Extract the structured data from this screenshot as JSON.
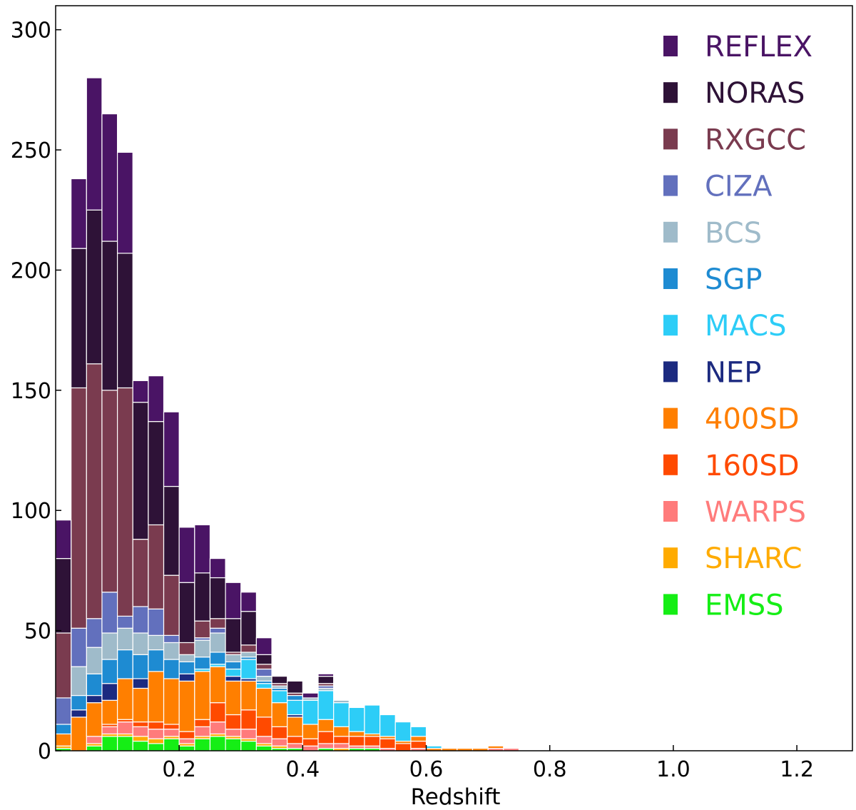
{
  "chart_data": {
    "type": "bar",
    "subtype": "stacked-histogram",
    "title": "",
    "xlabel": "Redshift",
    "ylabel": "",
    "xlim": [
      0.0,
      1.29
    ],
    "ylim": [
      0,
      310
    ],
    "x_ticks": [
      0.2,
      0.4,
      0.6,
      0.8,
      1.0,
      1.2
    ],
    "x_tick_labels": [
      "0.2",
      "0.4",
      "0.6",
      "0.8",
      "1.0",
      "1.2"
    ],
    "y_ticks": [
      0,
      50,
      100,
      150,
      200,
      250,
      300
    ],
    "y_tick_labels": [
      "0",
      "50",
      "100",
      "150",
      "200",
      "250",
      "300"
    ],
    "grid": false,
    "legend_position": "top-right",
    "bin_width": 0.025,
    "x": [
      0.0125,
      0.0375,
      0.0625,
      0.0875,
      0.1125,
      0.1375,
      0.1625,
      0.1875,
      0.2125,
      0.2375,
      0.2625,
      0.2875,
      0.3125,
      0.3375,
      0.3625,
      0.3875,
      0.4125,
      0.4375,
      0.4625,
      0.4875,
      0.5125,
      0.5375,
      0.5625,
      0.5875,
      0.6125,
      0.6375,
      0.6625,
      0.6875,
      0.7125,
      0.7375,
      0.7625,
      0.7875,
      0.8125,
      0.8375,
      0.8625,
      0.8875,
      0.9125,
      0.9375,
      0.9625,
      0.9875,
      1.0125,
      1.0375,
      1.0625,
      1.0875,
      1.1125,
      1.1375,
      1.1625,
      1.1875,
      1.2125,
      1.2375,
      1.2625
    ],
    "series": [
      {
        "name": "EMSS",
        "color": "#15ee15",
        "values": [
          1,
          0,
          2,
          6,
          6,
          4,
          3,
          5,
          2,
          5,
          6,
          5,
          4,
          2,
          1,
          1,
          0,
          1,
          0,
          1,
          1,
          0,
          0,
          0,
          0,
          0,
          0,
          0,
          0,
          0,
          0,
          0,
          0,
          0,
          0,
          0,
          0,
          0,
          0,
          0,
          0,
          0,
          0,
          0,
          0,
          0,
          0,
          0,
          0,
          0,
          0
        ]
      },
      {
        "name": "SHARC",
        "color": "#ffab00",
        "values": [
          1,
          0,
          1,
          1,
          1,
          2,
          2,
          1,
          1,
          1,
          1,
          1,
          1,
          1,
          1,
          0,
          0,
          0,
          1,
          0,
          0,
          0,
          0,
          0,
          0,
          0,
          0,
          0,
          0,
          0,
          0,
          0,
          0,
          0,
          0,
          0,
          0,
          0,
          0,
          0,
          0,
          0,
          0,
          0,
          0,
          0,
          0,
          0,
          0,
          0,
          0
        ]
      },
      {
        "name": "WARPS",
        "color": "#ff7b7b",
        "values": [
          0,
          0,
          3,
          3,
          5,
          4,
          4,
          3,
          2,
          4,
          5,
          3,
          4,
          3,
          3,
          2,
          2,
          2,
          2,
          1,
          1,
          1,
          0,
          1,
          0,
          0,
          0,
          0,
          1,
          1,
          0,
          0,
          0,
          0,
          0,
          0,
          0,
          0,
          0,
          0,
          0,
          0,
          0,
          0,
          0,
          0,
          0,
          0,
          0,
          0,
          0
        ]
      },
      {
        "name": "160SD",
        "color": "#ff4a00",
        "values": [
          0,
          0,
          0,
          1,
          1,
          2,
          3,
          2,
          3,
          3,
          8,
          6,
          8,
          8,
          5,
          3,
          3,
          5,
          3,
          4,
          4,
          4,
          3,
          3,
          0,
          0,
          0,
          0,
          0,
          0,
          0,
          0,
          0,
          0,
          0,
          0,
          0,
          0,
          0,
          0,
          0,
          0,
          0,
          0,
          0,
          0,
          0,
          0,
          0,
          0,
          0
        ]
      },
      {
        "name": "400SD",
        "color": "#ff7f00",
        "values": [
          5,
          14,
          14,
          10,
          17,
          14,
          21,
          19,
          21,
          20,
          15,
          14,
          12,
          12,
          10,
          8,
          6,
          5,
          4,
          2,
          1,
          1,
          1,
          2,
          1,
          1,
          1,
          1,
          1,
          0,
          0,
          0,
          0,
          0,
          0,
          0,
          0,
          0,
          0,
          0,
          0,
          0,
          0,
          0,
          0,
          0,
          0,
          0,
          0,
          0,
          0
        ]
      },
      {
        "name": "NEP",
        "color": "#1c2a80",
        "values": [
          0,
          3,
          3,
          7,
          0,
          4,
          0,
          0,
          3,
          0,
          0,
          2,
          1,
          0,
          0,
          1,
          0,
          0,
          0,
          0,
          0,
          0,
          0,
          0,
          0,
          0,
          0,
          0,
          0,
          0,
          0,
          0,
          0,
          0,
          0,
          0,
          0,
          0,
          0,
          0,
          0,
          0,
          0,
          0,
          0,
          0,
          0,
          0,
          0,
          0,
          0
        ]
      },
      {
        "name": "MACS",
        "color": "#2dcdf7",
        "values": [
          0,
          0,
          0,
          0,
          0,
          0,
          0,
          0,
          0,
          1,
          1,
          3,
          8,
          2,
          5,
          6,
          10,
          12,
          10,
          10,
          12,
          9,
          8,
          4,
          1,
          0,
          0,
          0,
          0,
          0,
          0,
          0,
          0,
          0,
          0,
          0,
          0,
          0,
          0,
          0,
          0,
          0,
          0,
          0,
          0,
          0,
          0,
          0,
          0,
          0,
          0
        ]
      },
      {
        "name": "SGP",
        "color": "#1e8bd2",
        "values": [
          4,
          6,
          9,
          10,
          12,
          10,
          9,
          8,
          5,
          5,
          5,
          3,
          1,
          1,
          1,
          2,
          0,
          0,
          0,
          0,
          0,
          0,
          0,
          0,
          0,
          0,
          0,
          0,
          0,
          0,
          0,
          0,
          0,
          0,
          0,
          0,
          0,
          0,
          0,
          0,
          0,
          0,
          0,
          0,
          0,
          0,
          0,
          0,
          0,
          0,
          0
        ]
      },
      {
        "name": "BCS",
        "color": "#9fbbca",
        "values": [
          0,
          12,
          11,
          11,
          9,
          9,
          6,
          7,
          3,
          7,
          8,
          3,
          2,
          2,
          1,
          0,
          1,
          1,
          1,
          0,
          0,
          0,
          0,
          0,
          0,
          0,
          0,
          0,
          0,
          0,
          0,
          0,
          0,
          0,
          0,
          0,
          0,
          0,
          0,
          0,
          0,
          0,
          0,
          0,
          0,
          0,
          0,
          0,
          0,
          0,
          0
        ]
      },
      {
        "name": "CIZA",
        "color": "#6270bd",
        "values": [
          11,
          16,
          12,
          17,
          5,
          11,
          11,
          3,
          0,
          1,
          2,
          0,
          0,
          3,
          0,
          0,
          0,
          1,
          0,
          0,
          0,
          0,
          0,
          0,
          0,
          0,
          0,
          0,
          0,
          0,
          0,
          0,
          0,
          0,
          0,
          0,
          0,
          0,
          0,
          0,
          0,
          0,
          0,
          0,
          0,
          0,
          0,
          0,
          0,
          0,
          0
        ]
      },
      {
        "name": "RXGCC",
        "color": "#7a3b4f",
        "values": [
          27,
          100,
          106,
          84,
          95,
          28,
          35,
          25,
          5,
          7,
          4,
          1,
          3,
          2,
          1,
          1,
          0,
          1,
          0,
          0,
          0,
          0,
          0,
          0,
          0,
          0,
          0,
          0,
          0,
          0,
          0,
          0,
          0,
          0,
          0,
          0,
          0,
          0,
          0,
          0,
          0,
          0,
          0,
          0,
          0,
          0,
          0,
          0,
          0,
          0,
          0
        ]
      },
      {
        "name": "NORAS",
        "color": "#2e1237",
        "values": [
          31,
          58,
          64,
          62,
          56,
          57,
          43,
          37,
          25,
          20,
          17,
          14,
          14,
          4,
          3,
          5,
          0,
          3,
          0,
          0,
          0,
          0,
          0,
          0,
          0,
          0,
          0,
          0,
          0,
          0,
          0,
          0,
          0,
          0,
          0,
          0,
          0,
          0,
          0,
          0,
          0,
          0,
          0,
          0,
          0,
          0,
          0,
          0,
          0,
          0,
          0
        ]
      },
      {
        "name": "REFLEX",
        "color": "#4a1465",
        "values": [
          16,
          29,
          55,
          53,
          42,
          9,
          19,
          31,
          23,
          20,
          8,
          15,
          8,
          7,
          0,
          0,
          2,
          1,
          0,
          0,
          0,
          0,
          0,
          0,
          0,
          0,
          0,
          0,
          0,
          0,
          0,
          0,
          0,
          0,
          0,
          0,
          0,
          0,
          0,
          0,
          0,
          0,
          0,
          0,
          0,
          0,
          0,
          0,
          0,
          0,
          0
        ]
      }
    ],
    "legend": [
      {
        "name": "REFLEX",
        "color": "#4a1465"
      },
      {
        "name": "NORAS",
        "color": "#2e1237"
      },
      {
        "name": "RXGCC",
        "color": "#7a3b4f"
      },
      {
        "name": "CIZA",
        "color": "#6270bd"
      },
      {
        "name": "BCS",
        "color": "#9fbbca"
      },
      {
        "name": "SGP",
        "color": "#1e8bd2"
      },
      {
        "name": "MACS",
        "color": "#2dcdf7"
      },
      {
        "name": "NEP",
        "color": "#1c2a80"
      },
      {
        "name": "400SD",
        "color": "#ff7f00"
      },
      {
        "name": "160SD",
        "color": "#ff4a00"
      },
      {
        "name": "WARPS",
        "color": "#ff7b7b"
      },
      {
        "name": "SHARC",
        "color": "#ffab00"
      },
      {
        "name": "EMSS",
        "color": "#15ee15"
      }
    ]
  }
}
